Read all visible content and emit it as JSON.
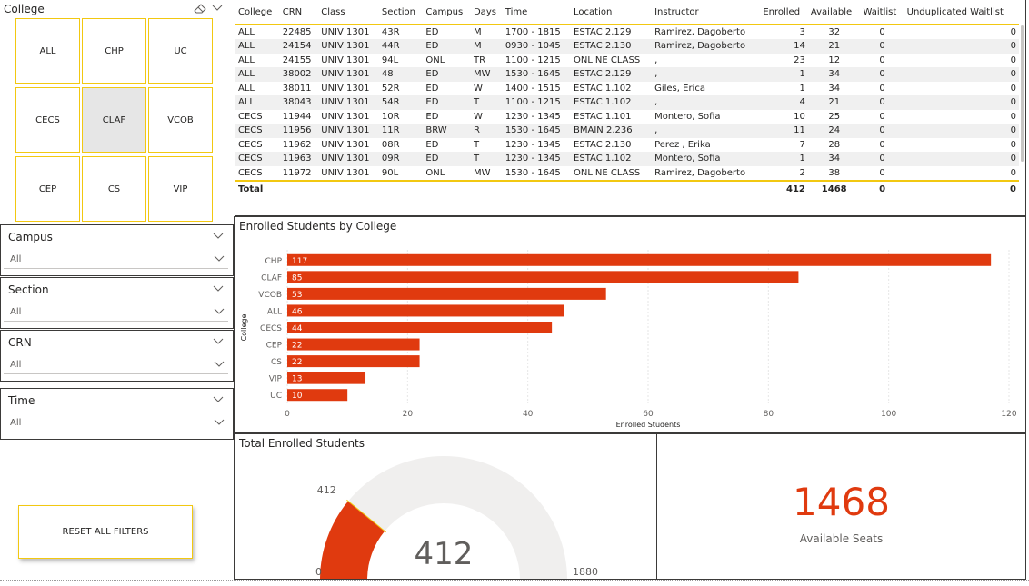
{
  "college_slicer": {
    "title": "College",
    "tiles": [
      "ALL",
      "CHP",
      "UC",
      "CECS",
      "CLAF",
      "VCOB",
      "CEP",
      "CS",
      "VIP"
    ],
    "selected": "CLAF"
  },
  "dropdowns": [
    {
      "title": "Campus",
      "value": "All"
    },
    {
      "title": "Section",
      "value": "All"
    },
    {
      "title": "CRN",
      "value": "All"
    },
    {
      "title": "Time",
      "value": "All"
    }
  ],
  "reset_button": "RESET ALL FILTERS",
  "table": {
    "headers": [
      "College",
      "CRN",
      "Class",
      "Section",
      "Campus",
      "Days",
      "Time",
      "Location",
      "Instructor",
      "Enrolled",
      "Available",
      "Waitlist",
      "Unduplicated Waitlist"
    ],
    "rows": [
      [
        "ALL",
        "22485",
        "UNIV 1301",
        "43R",
        "ED",
        "M",
        "1700 - 1815",
        "ESTAC 2.129",
        "Ramirez, Dagoberto",
        "3",
        "32",
        "0",
        "0"
      ],
      [
        "ALL",
        "24154",
        "UNIV 1301",
        "44R",
        "ED",
        "M",
        "0930 - 1045",
        "ESTAC 2.130",
        "Ramirez, Dagoberto",
        "14",
        "21",
        "0",
        "0"
      ],
      [
        "ALL",
        "24155",
        "UNIV 1301",
        "94L",
        "ONL",
        "TR",
        "1100 - 1215",
        "ONLINE CLASS",
        ",",
        "23",
        "12",
        "0",
        "0"
      ],
      [
        "ALL",
        "38002",
        "UNIV 1301",
        "48",
        "ED",
        "MW",
        "1530 - 1645",
        "ESTAC 2.129",
        ",",
        "1",
        "34",
        "0",
        "0"
      ],
      [
        "ALL",
        "38011",
        "UNIV 1301",
        "52R",
        "ED",
        "W",
        "1400 - 1515",
        "ESTAC 1.102",
        "Giles, Erica",
        "1",
        "34",
        "0",
        "0"
      ],
      [
        "ALL",
        "38043",
        "UNIV 1301",
        "54R",
        "ED",
        "T",
        "1100 - 1215",
        "ESTAC 1.102",
        ",",
        "4",
        "21",
        "0",
        "0"
      ],
      [
        "CECS",
        "11944",
        "UNIV 1301",
        "10R",
        "ED",
        "W",
        "1230 - 1345",
        "ESTAC 1.101",
        "Montero, Sofia",
        "10",
        "25",
        "0",
        "0"
      ],
      [
        "CECS",
        "11956",
        "UNIV 1301",
        "11R",
        "BRW",
        "R",
        "1530 - 1645",
        "BMAIN 2.236",
        ",",
        "11",
        "24",
        "0",
        "0"
      ],
      [
        "CECS",
        "11962",
        "UNIV 1301",
        "08R",
        "ED",
        "T",
        "1230 - 1345",
        "ESTAC 2.130",
        "Perez , Erika",
        "7",
        "28",
        "0",
        "0"
      ],
      [
        "CECS",
        "11963",
        "UNIV 1301",
        "09R",
        "ED",
        "T",
        "1230 - 1345",
        "ESTAC 1.102",
        "Montero, Sofia",
        "1",
        "34",
        "0",
        "0"
      ],
      [
        "CECS",
        "11972",
        "UNIV 1301",
        "90L",
        "ONL",
        "MW",
        "1530 - 1645",
        "ONLINE CLASS",
        "Ramirez, Dagoberto",
        "2",
        "38",
        "0",
        "0"
      ]
    ],
    "total": {
      "label": "Total",
      "enrolled": "412",
      "available": "1468",
      "waitlist": "0",
      "unduplicated": "0"
    }
  },
  "bar_chart": {
    "title": "Enrolled Students by College",
    "chart_data": {
      "type": "bar",
      "orientation": "horizontal",
      "categories": [
        "CHP",
        "CLAF",
        "VCOB",
        "ALL",
        "CECS",
        "CEP",
        "CS",
        "VIP",
        "UC"
      ],
      "values": [
        117,
        85,
        53,
        46,
        44,
        22,
        22,
        13,
        10
      ],
      "xlabel": "Enrolled Students",
      "ylabel": "College",
      "xlim": [
        0,
        120
      ],
      "xticks": [
        0,
        20,
        40,
        60,
        80,
        100,
        120
      ],
      "grid": true,
      "bar_color": "#e03a0f"
    }
  },
  "gauge": {
    "title": "Total Enrolled Students",
    "value": 412,
    "value_label": "412",
    "min_label": "0",
    "max_label": "1880",
    "min": 0,
    "max": 1880,
    "fill_color": "#e03a0f",
    "track_color": "#f0efee"
  },
  "card": {
    "value": "1468",
    "label": "Available Seats",
    "color": "#e03a0f"
  }
}
